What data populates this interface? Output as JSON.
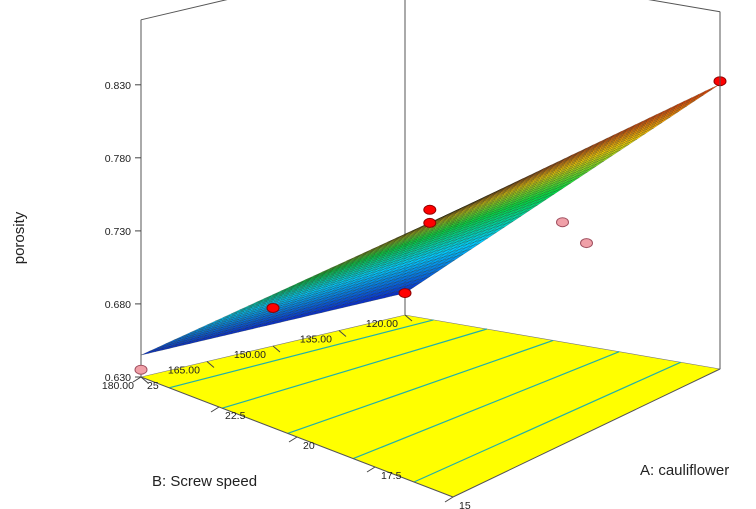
{
  "chart_data": {
    "type": "surface",
    "zlabel": "porosity",
    "xlabel": "A: cauliflower",
    "ylabel": "B: Screw speed",
    "x_ticks": [
      "15",
      "17.5",
      "20",
      "22.5",
      "25"
    ],
    "y_ticks": [
      "120.00",
      "135.00",
      "150.00",
      "165.00",
      "180.00"
    ],
    "z_ticks": [
      "0.630",
      "0.680",
      "0.730",
      "0.780",
      "0.830"
    ],
    "xlim": [
      15,
      25
    ],
    "ylim": [
      120,
      180
    ],
    "zlim": [
      0.63,
      0.83
    ],
    "surface_corners": [
      {
        "A": 15,
        "B": 120,
        "porosity": 0.825
      },
      {
        "A": 25,
        "B": 120,
        "porosity": 0.645
      },
      {
        "A": 25,
        "B": 180,
        "porosity": 0.645
      },
      {
        "A": 15,
        "B": 180,
        "porosity": 0.825
      }
    ],
    "design_points": [
      {
        "A": 15,
        "B": 120,
        "porosity": 0.827
      },
      {
        "A": 25,
        "B": 120,
        "porosity": 0.645
      },
      {
        "A": 25,
        "B": 180,
        "porosity": 0.635
      },
      {
        "A": 15,
        "B": 180,
        "porosity": 0.818
      },
      {
        "A": 20,
        "B": 150,
        "porosity": 0.753
      },
      {
        "A": 20,
        "B": 150,
        "porosity": 0.744
      },
      {
        "A": 20,
        "B": 120,
        "porosity": 0.712
      },
      {
        "A": 25,
        "B": 150,
        "porosity": 0.656
      },
      {
        "A": 15,
        "B": 150,
        "porosity": 0.76
      }
    ],
    "colormap": [
      "#0a28c8",
      "#00c8ff",
      "#00e040",
      "#ffd200",
      "#ff3c00"
    ],
    "floor_color": "#ffff00",
    "contour_color": "#22b0a8",
    "point_above_color": "#ff0000",
    "point_below_color": "#f0a0a8"
  }
}
